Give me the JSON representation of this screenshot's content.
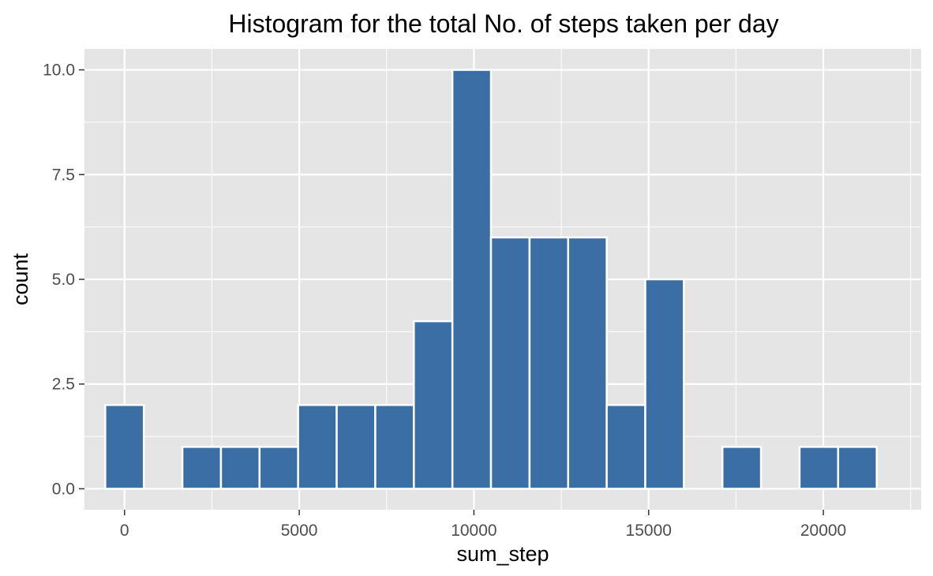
{
  "chart_data": {
    "type": "bar",
    "title": "Histogram for the total No. of steps taken per  day",
    "xlabel": "sum_step",
    "ylabel": "count",
    "xlim": [
      -1147,
      22800
    ],
    "ylim": [
      -0.5,
      10.5
    ],
    "x_ticks": [
      0,
      5000,
      10000,
      15000,
      20000
    ],
    "x_tick_labels": [
      "0",
      "5000",
      "10000",
      "15000",
      "20000"
    ],
    "y_ticks": [
      0,
      2.5,
      5,
      7.5,
      10
    ],
    "y_tick_labels": [
      "0.0",
      "2.5",
      "5.0",
      "7.5",
      "10.0"
    ],
    "bin_width": 1104,
    "bins": [
      {
        "start": -552,
        "end": 552,
        "count": 2
      },
      {
        "start": 552,
        "end": 1656,
        "count": 0
      },
      {
        "start": 1656,
        "end": 2760,
        "count": 1
      },
      {
        "start": 2760,
        "end": 3864,
        "count": 1
      },
      {
        "start": 3864,
        "end": 4968,
        "count": 1
      },
      {
        "start": 4968,
        "end": 6072,
        "count": 2
      },
      {
        "start": 6072,
        "end": 7176,
        "count": 2
      },
      {
        "start": 7176,
        "end": 8280,
        "count": 2
      },
      {
        "start": 8280,
        "end": 9384,
        "count": 4
      },
      {
        "start": 9384,
        "end": 10488,
        "count": 10
      },
      {
        "start": 10488,
        "end": 11592,
        "count": 6
      },
      {
        "start": 11592,
        "end": 12696,
        "count": 6
      },
      {
        "start": 12696,
        "end": 13800,
        "count": 6
      },
      {
        "start": 13800,
        "end": 14904,
        "count": 2
      },
      {
        "start": 14904,
        "end": 16008,
        "count": 5
      },
      {
        "start": 16008,
        "end": 17112,
        "count": 0
      },
      {
        "start": 17112,
        "end": 18216,
        "count": 1
      },
      {
        "start": 18216,
        "end": 19320,
        "count": 0
      },
      {
        "start": 19320,
        "end": 20424,
        "count": 1
      },
      {
        "start": 20424,
        "end": 21528,
        "count": 1
      }
    ],
    "grid": true,
    "legend": "none"
  },
  "colors": {
    "panel_background": "#e5e5e5",
    "grid": "#ffffff",
    "bar_fill": "#3a6ea5",
    "bar_outline": "#ffffff",
    "tick_mark": "#333333"
  }
}
